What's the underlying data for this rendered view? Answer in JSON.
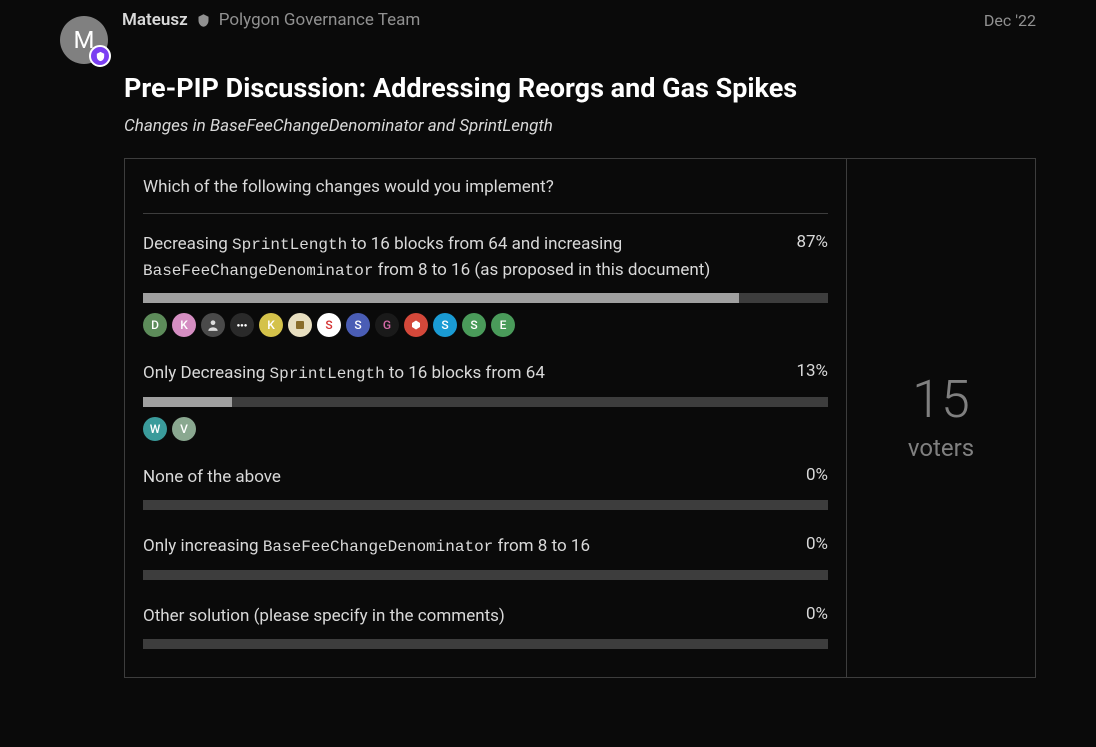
{
  "header": {
    "author_initial": "M",
    "author_name": "Mateusz",
    "author_group": "Polygon Governance Team",
    "post_date": "Dec '22"
  },
  "post": {
    "title": "Pre-PIP Discussion: Addressing Reorgs and Gas Spikes",
    "subtitle": "Changes in BaseFeeChangeDenominator and SprintLength"
  },
  "poll": {
    "question": "Which of the following changes would you implement?",
    "voter_count": "15",
    "voter_label": "voters",
    "options": [
      {
        "text_pre": "Decreasing ",
        "code1": "SprintLength",
        "text_mid1": " to 16 blocks from 64 and increasing ",
        "code2": "BaseFeeChangeDenominator",
        "text_post": " from 8 to 16 (as proposed in this document)",
        "percent": "87%",
        "bar_width": "87%",
        "voters": [
          {
            "label": "D",
            "bg": "#5d8c5a"
          },
          {
            "label": "K",
            "bg": "#d58ec2"
          },
          {
            "label": "",
            "bg": "#4a4a4a",
            "img_style": "person"
          },
          {
            "label": "",
            "bg": "#2a2a2a",
            "text_style": "tiny"
          },
          {
            "label": "K",
            "bg": "#d4c24a"
          },
          {
            "label": "",
            "bg": "#e8dfc0",
            "img_style": "emblem"
          },
          {
            "label": "S",
            "bg": "#ffffff",
            "fg": "#d43030"
          },
          {
            "label": "S",
            "bg": "#4a5db5"
          },
          {
            "label": "G",
            "bg": "#1a1a1a",
            "fg": "#d46aa8"
          },
          {
            "label": "",
            "bg": "#d4483a",
            "img_style": "hex"
          },
          {
            "label": "S",
            "bg": "#1a9bd4"
          },
          {
            "label": "S",
            "bg": "#4a9b5a"
          },
          {
            "label": "E",
            "bg": "#4a9b5a"
          }
        ]
      },
      {
        "text_pre": "Only Decreasing ",
        "code1": "SprintLength",
        "text_mid1": " to 16 blocks from 64",
        "code2": "",
        "text_post": "",
        "percent": "13%",
        "bar_width": "13%",
        "voters": [
          {
            "label": "W",
            "bg": "#3a9b9b"
          },
          {
            "label": "V",
            "bg": "#8aa890"
          }
        ]
      },
      {
        "text_pre": "None of the above",
        "code1": "",
        "text_mid1": "",
        "code2": "",
        "text_post": "",
        "percent": "0%",
        "bar_width": "0%",
        "voters": []
      },
      {
        "text_pre": "Only increasing ",
        "code1": "BaseFeeChangeDenominator",
        "text_mid1": " from 8 to 16",
        "code2": "",
        "text_post": "",
        "percent": "0%",
        "bar_width": "0%",
        "voters": []
      },
      {
        "text_pre": "Other solution (please specify in the comments)",
        "code1": "",
        "text_mid1": "",
        "code2": "",
        "text_post": "",
        "percent": "0%",
        "bar_width": "0%",
        "voters": []
      }
    ]
  },
  "colors": {
    "bg": "#0a0a0a",
    "text": "#d9d9d9",
    "muted": "#919191",
    "border": "#3d3d3d",
    "track": "#3d3d3d",
    "fill": "#a0a0a0"
  }
}
